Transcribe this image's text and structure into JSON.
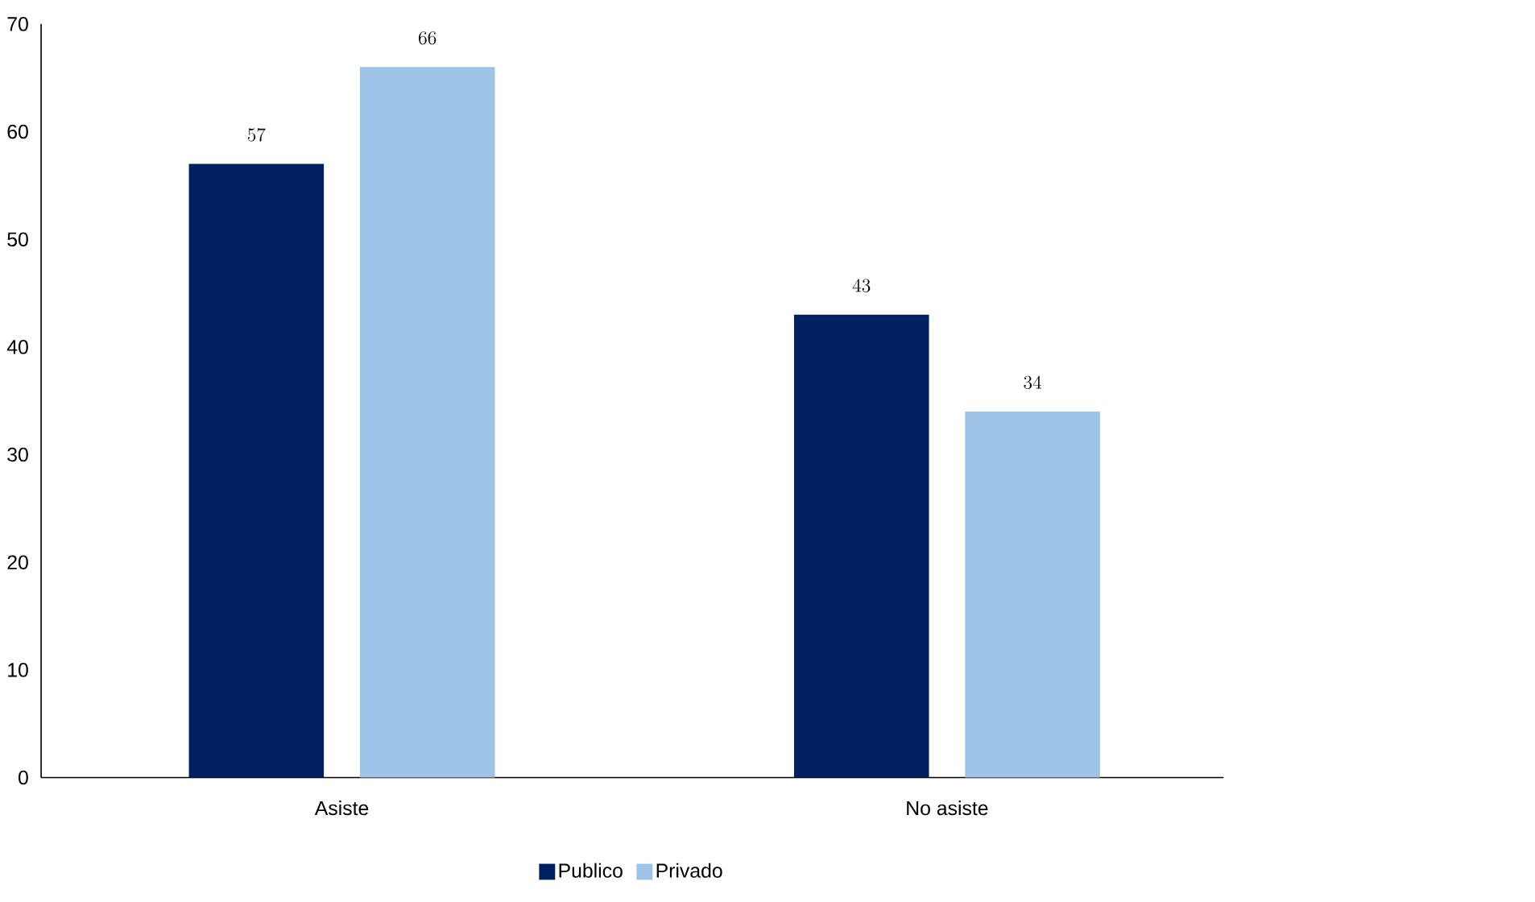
{
  "chart_data": {
    "type": "bar",
    "categories": [
      "Asiste",
      "No asiste"
    ],
    "series": [
      {
        "name": "Publico",
        "color": "#002060",
        "values": [
          57,
          43
        ]
      },
      {
        "name": "Privado",
        "color": "#9dc3e6",
        "values": [
          66,
          34
        ]
      }
    ],
    "ylim": [
      0,
      70
    ],
    "yticks": [
      0,
      10,
      20,
      30,
      40,
      50,
      60,
      70
    ],
    "data_labels": true,
    "grid": false,
    "legend": "bottom"
  }
}
